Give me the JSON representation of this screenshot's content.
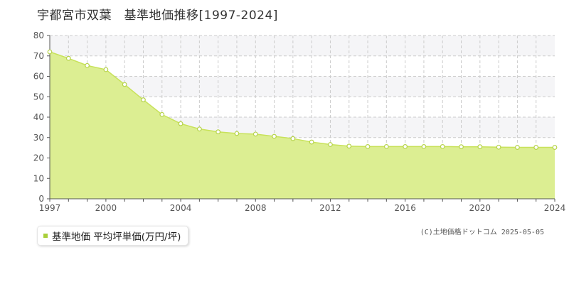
{
  "title": "宇都宮市双葉　基準地価推移[1997-2024]",
  "credit": "(C)土地価格ドットコム 2025-05-05",
  "colors": {
    "fill": "#dcee92",
    "line": "#c8e25a",
    "marker_fill": "#ffffff",
    "marker_stroke": "#b6d34a",
    "legend_swatch": "#a9cf3a",
    "grid": "#cccccc",
    "band": "#f5f5f7",
    "axis": "#555555"
  },
  "chart_data": {
    "type": "area",
    "title": "宇都宮市双葉　基準地価推移[1997-2024]",
    "xlabel": "",
    "ylabel": "",
    "x": [
      1997,
      1998,
      1999,
      2000,
      2001,
      2002,
      2003,
      2004,
      2005,
      2006,
      2007,
      2008,
      2009,
      2010,
      2011,
      2012,
      2013,
      2014,
      2015,
      2016,
      2017,
      2018,
      2019,
      2020,
      2021,
      2022,
      2023,
      2024
    ],
    "series": [
      {
        "name": "基準地価 平均坪単価(万円/坪)",
        "values": [
          72.0,
          68.8,
          65.3,
          63.3,
          56.0,
          48.5,
          41.3,
          36.8,
          34.2,
          32.8,
          32.0,
          31.7,
          30.6,
          29.5,
          27.8,
          26.6,
          25.8,
          25.6,
          25.6,
          25.6,
          25.6,
          25.6,
          25.5,
          25.5,
          25.3,
          25.2,
          25.2,
          25.2
        ]
      }
    ],
    "xlim": [
      1997,
      2024
    ],
    "ylim": [
      0,
      80
    ],
    "x_ticks": [
      "1997",
      "2000",
      "2004",
      "2008",
      "2012",
      "2016",
      "2020",
      "2024"
    ],
    "y_ticks": [
      "0",
      "10",
      "20",
      "30",
      "40",
      "50",
      "60",
      "70",
      "80"
    ],
    "grid": true,
    "legend": "bottom-left"
  },
  "legend": {
    "label": "基準地価 平均坪単価(万円/坪)"
  }
}
